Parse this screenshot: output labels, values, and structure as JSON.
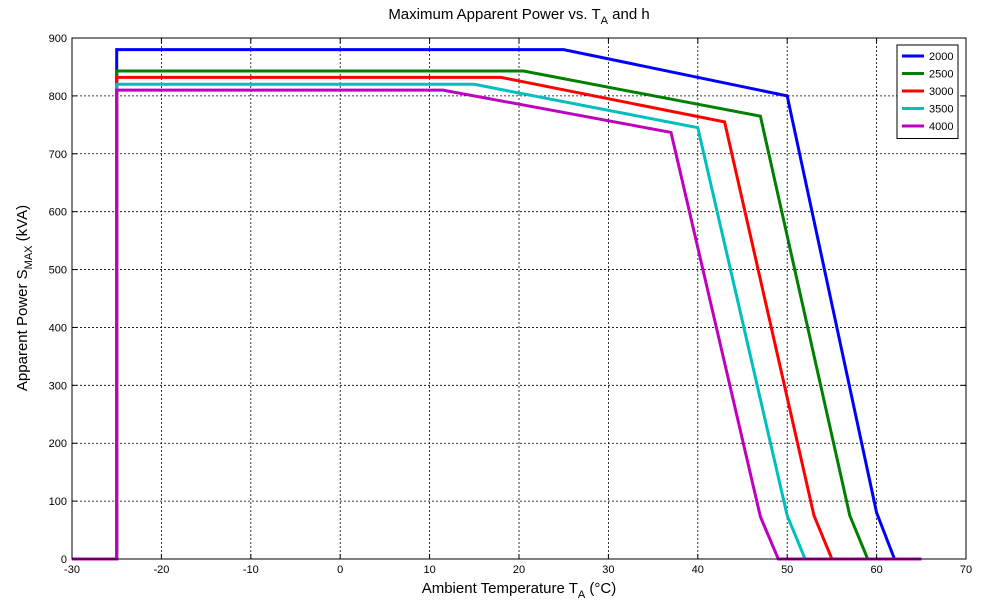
{
  "chart_data": {
    "type": "line",
    "title": "Maximum Apparent Power vs. T",
    "title_sub": "A",
    "title_tail": " and h",
    "xlabel": "Ambient Temperature T",
    "xlabel_sub": "A",
    "xlabel_tail": " (°C)",
    "ylabel": "Apparent Power S",
    "ylabel_sub": "MAX",
    "ylabel_tail": " (kVA)",
    "xlim": [
      -30,
      70
    ],
    "ylim": [
      0,
      900
    ],
    "xticks": [
      -30,
      -20,
      -10,
      0,
      10,
      20,
      30,
      40,
      50,
      60,
      70
    ],
    "yticks": [
      0,
      100,
      200,
      300,
      400,
      500,
      600,
      700,
      800,
      900
    ],
    "grid": true,
    "legend_position": "top-right",
    "series": [
      {
        "name": "2000",
        "color": "#0000ff",
        "x": [
          -30,
          -25,
          -25,
          25,
          50,
          60,
          62,
          65
        ],
        "y": [
          0,
          0,
          880,
          880,
          800,
          80,
          0,
          0
        ]
      },
      {
        "name": "2500",
        "color": "#007f00",
        "x": [
          -30,
          -25,
          -25,
          20.5,
          47,
          57,
          59,
          65
        ],
        "y": [
          0,
          0,
          843,
          843,
          765,
          75,
          0,
          0
        ]
      },
      {
        "name": "3000",
        "color": "#ff0000",
        "x": [
          -30,
          -25,
          -25,
          18,
          43,
          53,
          55,
          65
        ],
        "y": [
          0,
          0,
          832,
          832,
          755,
          75,
          0,
          0
        ]
      },
      {
        "name": "3500",
        "color": "#00bfbf",
        "x": [
          -30,
          -25,
          -25,
          15,
          40,
          50,
          52,
          65
        ],
        "y": [
          0,
          0,
          820,
          820,
          745,
          75,
          0,
          0
        ]
      },
      {
        "name": "4000",
        "color": "#bf00bf",
        "x": [
          -30,
          -25,
          -25,
          11.5,
          37,
          47,
          49,
          65
        ],
        "y": [
          0,
          0,
          810,
          810,
          737,
          73,
          0,
          0
        ]
      }
    ]
  }
}
